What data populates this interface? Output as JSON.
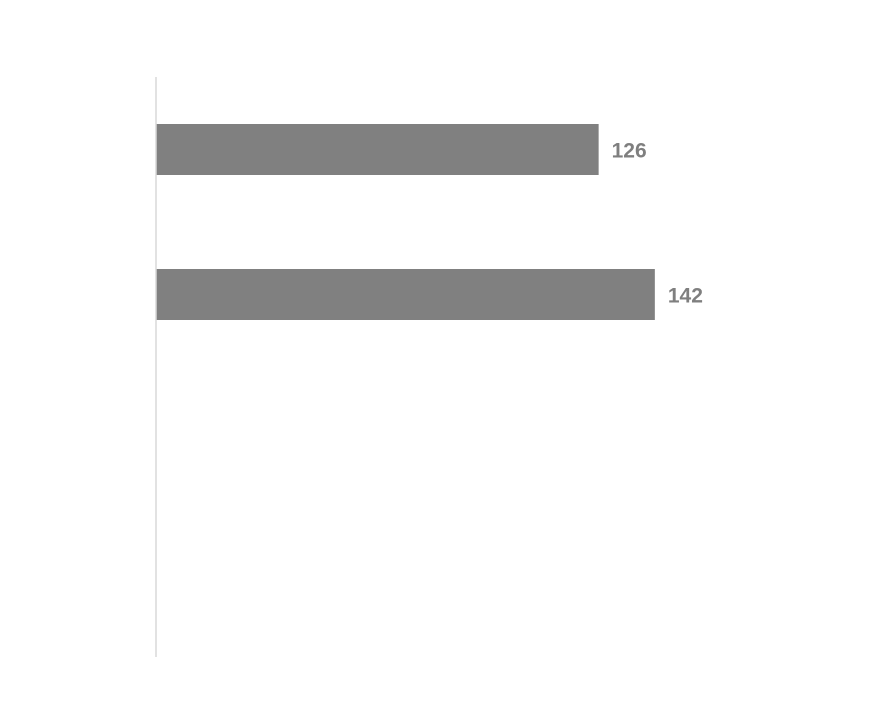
{
  "chart_data": {
    "type": "bar",
    "orientation": "horizontal",
    "title": "",
    "xlabel": "",
    "ylabel": "",
    "categories": [
      "",
      "",
      "",
      ""
    ],
    "values": [
      126,
      142,
      null,
      null
    ],
    "data_labels": [
      "126",
      "142",
      "",
      ""
    ],
    "xlim": [
      0,
      160
    ],
    "grid": false,
    "legend": "none",
    "colors": {
      "bar": "#808080",
      "label": "#7f7f7f",
      "axis": "#d9d9d9"
    }
  }
}
